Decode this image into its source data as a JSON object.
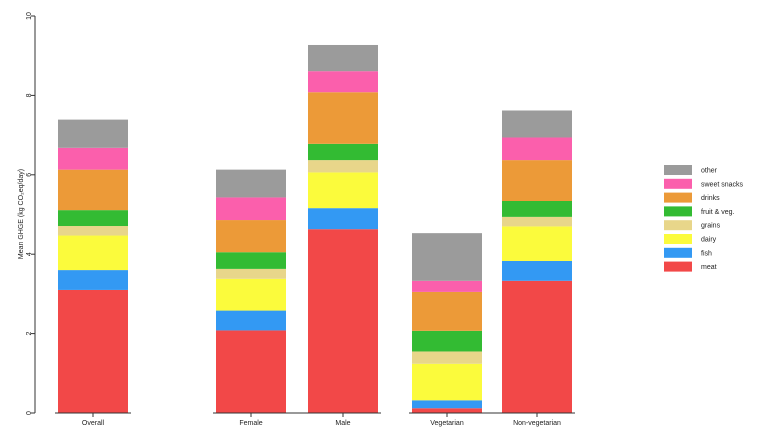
{
  "chart_data": {
    "type": "bar",
    "stacked": true,
    "title": "",
    "xlabel": "",
    "ylabel": "Mean GHGE (kg CO₂eq/day)",
    "ylim": [
      0,
      10
    ],
    "yticks": [
      0,
      2,
      4,
      6,
      8,
      10
    ],
    "grid": false,
    "legend_position": "right",
    "categories": [
      "Overall",
      "Female",
      "Male",
      "Vegetarian",
      "Non-vegetarian"
    ],
    "category_groups": [
      [
        "Overall"
      ],
      [
        "Female",
        "Male"
      ],
      [
        "Vegetarian",
        "Non-vegetarian"
      ]
    ],
    "series": [
      {
        "name": "meat",
        "color": "#f24848",
        "values": [
          3.1,
          2.08,
          4.63,
          0.12,
          3.33
        ]
      },
      {
        "name": "fish",
        "color": "#3399f3",
        "values": [
          0.5,
          0.5,
          0.53,
          0.2,
          0.5
        ]
      },
      {
        "name": "dairy",
        "color": "#fbfb3c",
        "values": [
          0.87,
          0.8,
          0.9,
          0.92,
          0.87
        ]
      },
      {
        "name": "grains",
        "color": "#e8d68a",
        "values": [
          0.24,
          0.25,
          0.31,
          0.31,
          0.24
        ]
      },
      {
        "name": "fruit & veg.",
        "color": "#33bb33",
        "values": [
          0.4,
          0.42,
          0.41,
          0.52,
          0.4
        ]
      },
      {
        "name": "drinks",
        "color": "#ec9a38",
        "values": [
          1.02,
          0.81,
          1.3,
          0.98,
          1.03
        ]
      },
      {
        "name": "sweet snacks",
        "color": "#fb5fac",
        "values": [
          0.55,
          0.57,
          0.53,
          0.28,
          0.57
        ]
      },
      {
        "name": "other",
        "color": "#9b9b9b",
        "values": [
          0.71,
          0.7,
          0.66,
          1.2,
          0.68
        ]
      }
    ]
  }
}
